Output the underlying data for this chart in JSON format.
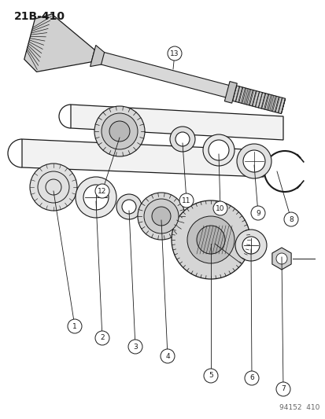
{
  "title": "21B-410",
  "watermark": "94152  410",
  "bg_color": "#ffffff",
  "line_color": "#1a1a1a",
  "fig_width": 4.14,
  "fig_height": 5.33,
  "dpi": 100
}
